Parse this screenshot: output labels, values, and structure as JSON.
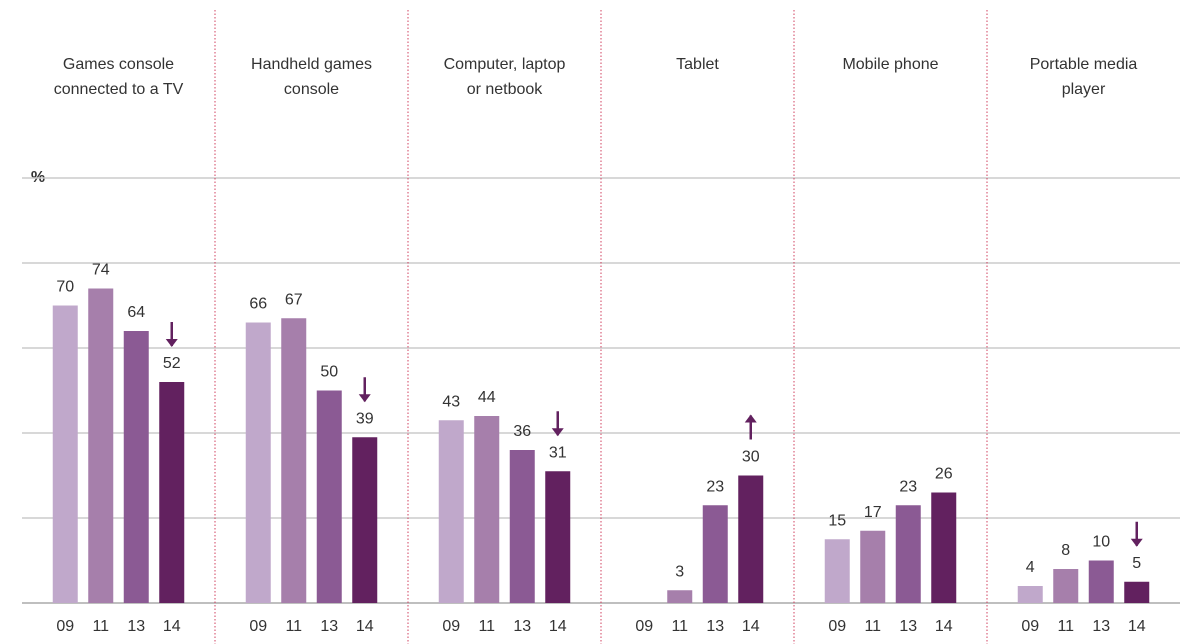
{
  "chart_data": {
    "type": "bar",
    "ylabel": "%",
    "categories": [
      "Games console\nconnected to a TV",
      "Handheld games\nconsole",
      "Computer, laptop\nor netbook",
      "Tablet",
      "Mobile phone",
      "Portable media\nplayer"
    ],
    "series": [
      {
        "name": "09",
        "color": "#c0a8cb",
        "values": [
          70,
          66,
          43,
          null,
          15,
          4
        ]
      },
      {
        "name": "11",
        "color": "#a67fab",
        "values": [
          74,
          67,
          44,
          3,
          17,
          8
        ]
      },
      {
        "name": "13",
        "color": "#8b5a94",
        "values": [
          64,
          50,
          36,
          23,
          23,
          10
        ]
      },
      {
        "name": "14",
        "color": "#62215f",
        "values": [
          52,
          39,
          31,
          30,
          26,
          5
        ]
      }
    ],
    "change_arrows": [
      "down",
      "down",
      "down",
      "up",
      null,
      "down"
    ],
    "ylim": [
      0,
      100
    ],
    "yticks": [
      0,
      20,
      40,
      60,
      80,
      100
    ],
    "grid": true
  }
}
